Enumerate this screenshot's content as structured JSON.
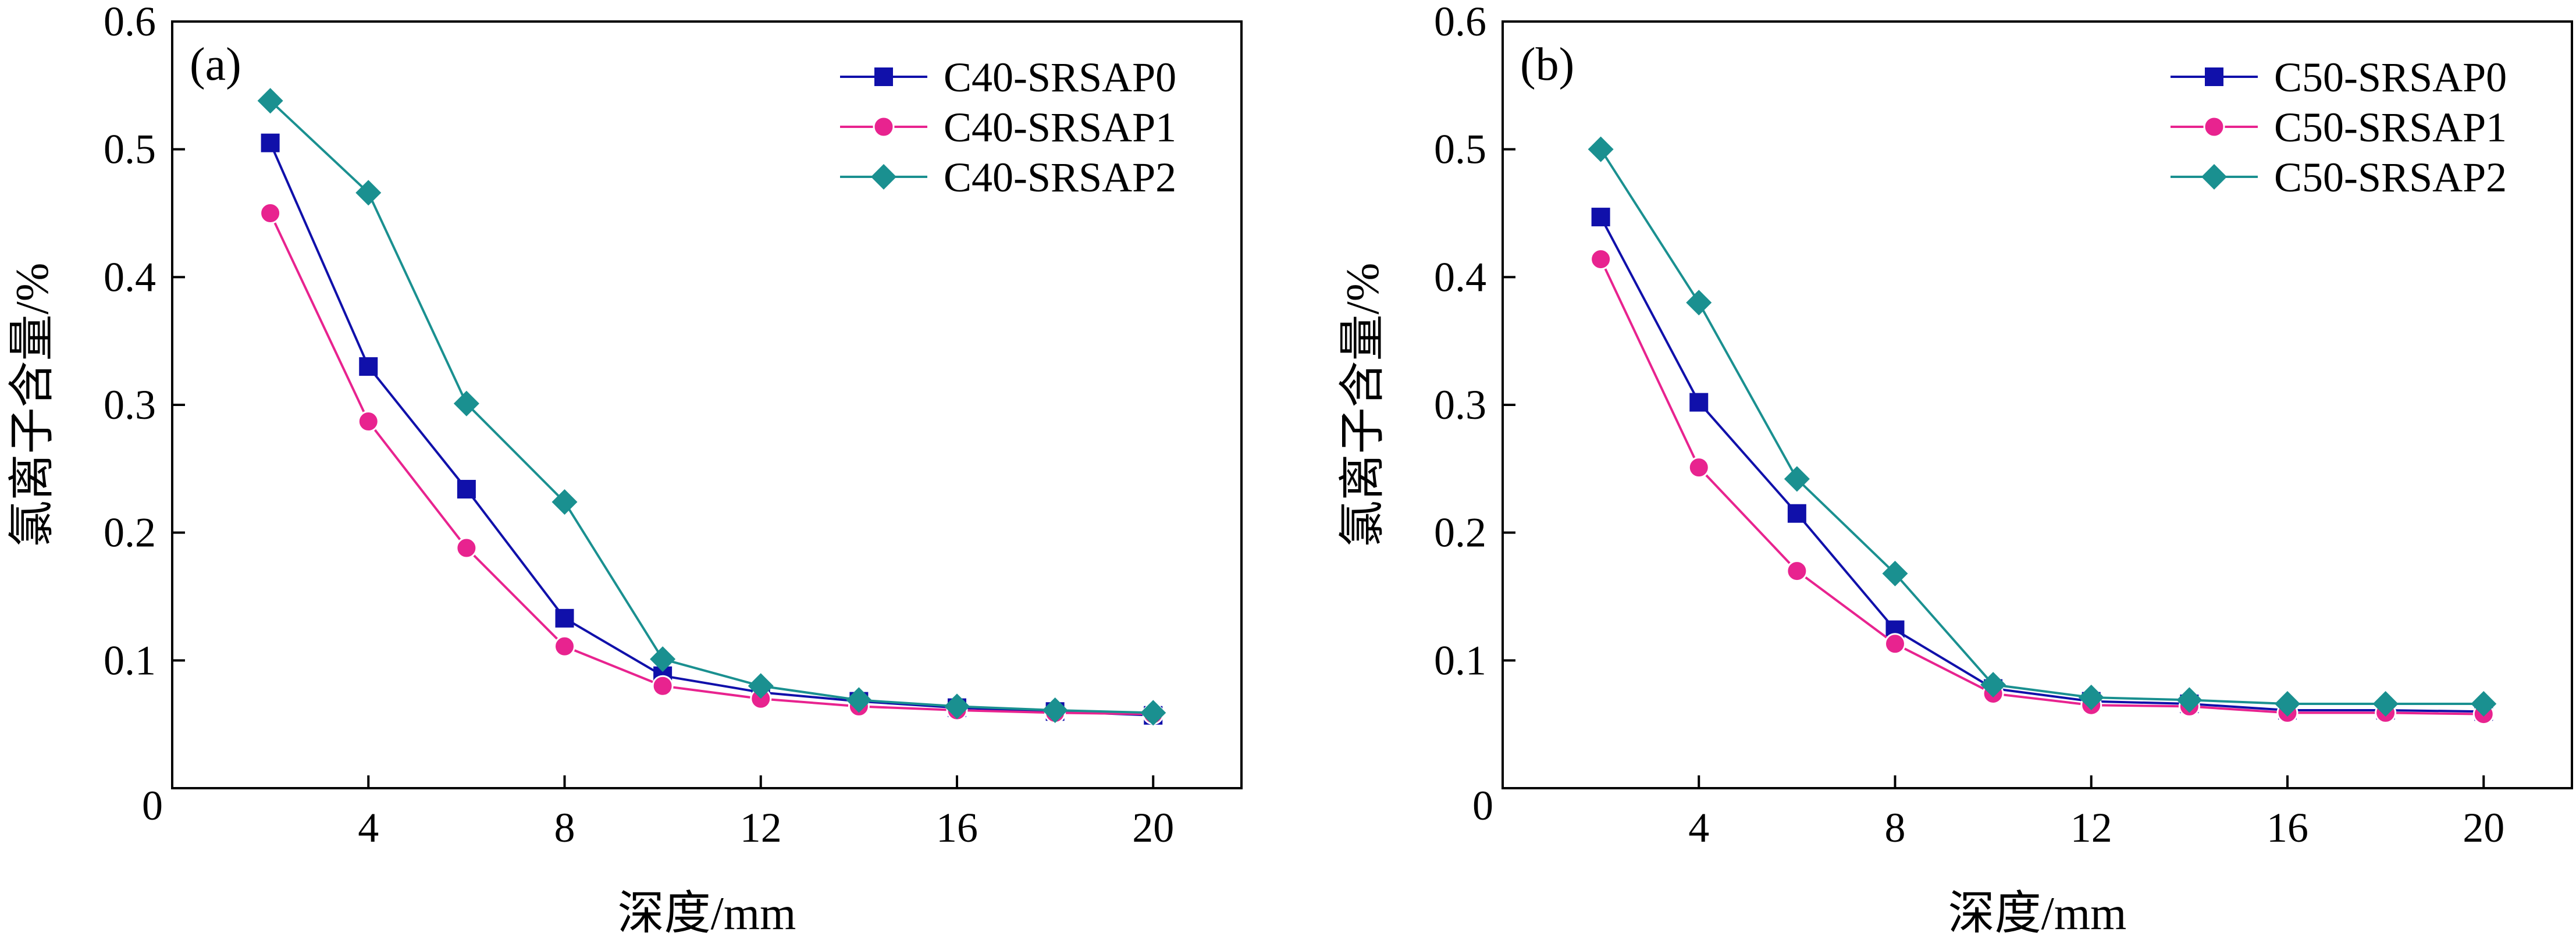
{
  "chart_data": [
    {
      "type": "line",
      "panel_label": "(a)",
      "xlabel": "深度/mm",
      "ylabel": "氯离子含量/%",
      "xlim": [
        0,
        21.8
      ],
      "ylim": [
        0,
        0.6
      ],
      "xticks": [
        4,
        8,
        12,
        16,
        20
      ],
      "xtick_labels": [
        "4",
        "8",
        "12",
        "16",
        "20"
      ],
      "yticks": [
        0.1,
        0.2,
        0.3,
        0.4,
        0.5,
        0.6
      ],
      "ytick_labels": [
        "0.1",
        "0.2",
        "0.3",
        "0.4",
        "0.5",
        "0.6"
      ],
      "origin_label": "0",
      "grid": false,
      "legend_position": "top-right",
      "x": [
        2,
        4,
        6,
        8,
        10,
        12,
        14,
        16,
        18,
        20
      ],
      "series": [
        {
          "name": "C40-SRSAP0",
          "color": "#1010aa",
          "marker": "square",
          "values": [
            0.505,
            0.33,
            0.234,
            0.133,
            0.088,
            0.075,
            0.068,
            0.063,
            0.06,
            0.057
          ]
        },
        {
          "name": "C40-SRSAP1",
          "color": "#e8238f",
          "marker": "circle",
          "values": [
            0.45,
            0.287,
            0.188,
            0.111,
            0.08,
            0.07,
            0.064,
            0.061,
            0.059,
            0.058
          ]
        },
        {
          "name": "C40-SRSAP2",
          "color": "#1a9090",
          "marker": "diamond",
          "values": [
            0.538,
            0.466,
            0.301,
            0.224,
            0.101,
            0.08,
            0.069,
            0.064,
            0.061,
            0.059
          ]
        }
      ]
    },
    {
      "type": "line",
      "panel_label": "(b)",
      "xlabel": "深度/mm",
      "ylabel": "氯离子含量/%",
      "xlim": [
        0,
        21.8
      ],
      "ylim": [
        0,
        0.6
      ],
      "xticks": [
        4,
        8,
        12,
        16,
        20
      ],
      "xtick_labels": [
        "4",
        "8",
        "12",
        "16",
        "20"
      ],
      "yticks": [
        0.1,
        0.2,
        0.3,
        0.4,
        0.5,
        0.6
      ],
      "ytick_labels": [
        "0.1",
        "0.2",
        "0.3",
        "0.4",
        "0.5",
        "0.6"
      ],
      "origin_label": "0",
      "grid": false,
      "legend_position": "top-right",
      "x": [
        2,
        4,
        6,
        8,
        10,
        12,
        14,
        16,
        18,
        20
      ],
      "series": [
        {
          "name": "C50-SRSAP0",
          "color": "#1010aa",
          "marker": "square",
          "values": [
            0.447,
            0.302,
            0.215,
            0.124,
            0.078,
            0.068,
            0.066,
            0.061,
            0.061,
            0.06
          ]
        },
        {
          "name": "C50-SRSAP1",
          "color": "#e8238f",
          "marker": "circle",
          "values": [
            0.414,
            0.251,
            0.17,
            0.113,
            0.074,
            0.065,
            0.064,
            0.059,
            0.059,
            0.058
          ]
        },
        {
          "name": "C50-SRSAP2",
          "color": "#1a9090",
          "marker": "diamond",
          "values": [
            0.5,
            0.38,
            0.242,
            0.168,
            0.081,
            0.071,
            0.069,
            0.066,
            0.066,
            0.066
          ]
        }
      ]
    }
  ]
}
